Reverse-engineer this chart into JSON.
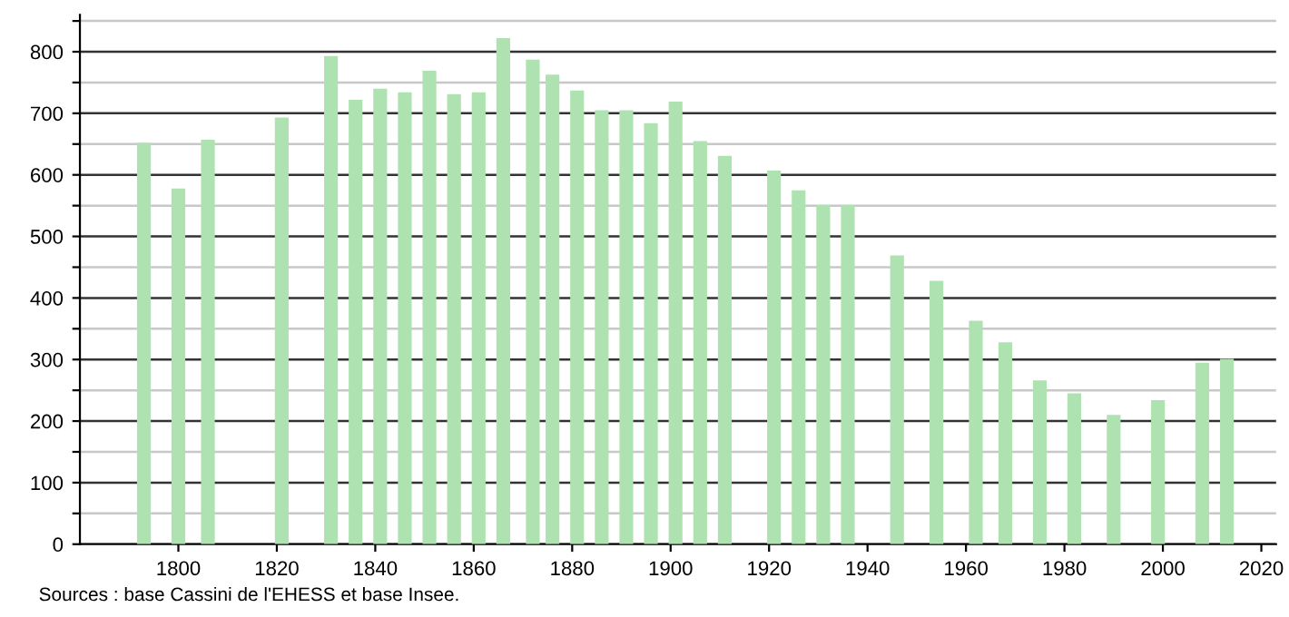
{
  "chart_data": {
    "type": "bar",
    "x": [
      1793,
      1800,
      1806,
      1821,
      1831,
      1836,
      1841,
      1846,
      1851,
      1856,
      1861,
      1866,
      1872,
      1876,
      1881,
      1886,
      1891,
      1896,
      1901,
      1906,
      1911,
      1921,
      1926,
      1931,
      1936,
      1946,
      1954,
      1962,
      1968,
      1975,
      1982,
      1990,
      1999,
      2008,
      2013
    ],
    "values": [
      652,
      578,
      657,
      693,
      793,
      722,
      740,
      734,
      769,
      731,
      734,
      822,
      787,
      763,
      737,
      705,
      705,
      684,
      719,
      655,
      631,
      607,
      575,
      551,
      551,
      469,
      428,
      363,
      328,
      266,
      245,
      210,
      234,
      295,
      301
    ],
    "color": "#aee3b1",
    "xlim": [
      1780,
      2023
    ],
    "xticks": [
      1800,
      1820,
      1840,
      1860,
      1880,
      1900,
      1920,
      1940,
      1960,
      1980,
      2000,
      2020
    ],
    "ylim": [
      0,
      860
    ],
    "yticks": [
      0,
      {
        "value": 50,
        "label": null
      },
      100,
      {
        "value": 150,
        "label": null
      },
      200,
      {
        "value": 250,
        "label": null
      },
      300,
      {
        "value": 350,
        "label": null
      },
      400,
      {
        "value": 450,
        "label": null
      },
      500,
      {
        "value": 550,
        "label": null
      },
      600,
      {
        "value": 650,
        "label": null
      },
      700,
      {
        "value": 750,
        "label": null
      },
      800,
      {
        "value": 850,
        "label": null
      }
    ],
    "grid": "y",
    "annotations": [
      "Sources : base Cassini de l'EHESS et base Insee."
    ]
  }
}
